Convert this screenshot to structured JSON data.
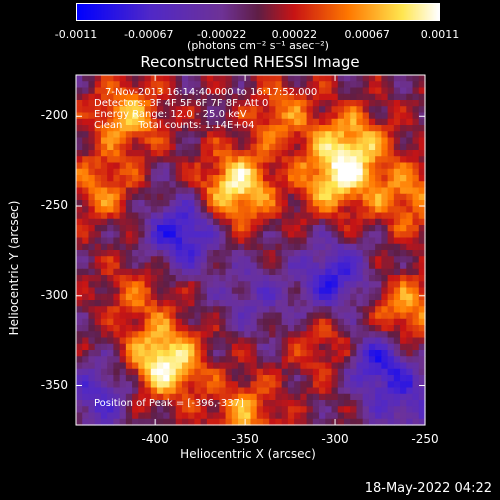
{
  "chart_data": {
    "type": "heatmap",
    "title": "Reconstructed RHESSI Image",
    "xlabel": "Heliocentric X (arcsec)",
    "ylabel": "Heliocentric Y (arcsec)",
    "xlim": [
      -444,
      -250
    ],
    "ylim": [
      -372,
      -177
    ],
    "xticks": [
      "-400",
      "-350",
      "-300",
      "-250"
    ],
    "yticks": [
      "-200",
      "-250",
      "-300",
      "-350"
    ],
    "colorbar": {
      "range": [
        -0.0011,
        0.0011
      ],
      "ticks": [
        "-0.0011",
        "-0.00067",
        "-0.00022",
        "0.00022",
        "0.00067",
        "0.0011"
      ],
      "units": "(photons cm⁻² s⁻¹ asec⁻²)"
    },
    "annotations": {
      "time": "7-Nov-2013 16:14:40.000 to 16:17:52.000",
      "detectors": "Detectors: 3F 4F 5F 6F 7F 8F, Att 0",
      "energy": "Energy Range: 12.0 - 25.0 keV",
      "method": "Clean     Total counts: 1.14E+04",
      "peak": "Position of Peak = [-396,-337]"
    },
    "sources": [
      {
        "x": -355,
        "y": -240,
        "value": 0.001
      },
      {
        "x": -395,
        "y": -337,
        "value": 0.0011
      },
      {
        "x": -300,
        "y": -235,
        "value": 0.0008
      },
      {
        "x": -290,
        "y": -215,
        "value": 0.0007
      },
      {
        "x": -415,
        "y": -200,
        "value": 0.0007
      },
      {
        "x": -260,
        "y": -245,
        "value": 0.0006
      },
      {
        "x": -262,
        "y": -310,
        "value": 0.0007
      },
      {
        "x": -350,
        "y": -365,
        "value": 0.0006
      },
      {
        "x": -430,
        "y": -240,
        "value": 0.0005
      },
      {
        "x": -300,
        "y": -330,
        "value": 0.0005
      },
      {
        "x": -330,
        "y": -200,
        "value": 0.0005
      },
      {
        "x": -410,
        "y": -300,
        "value": 0.0004
      },
      {
        "x": -385,
        "y": -265,
        "value": -0.0009
      },
      {
        "x": -300,
        "y": -290,
        "value": -0.0008
      },
      {
        "x": -278,
        "y": -335,
        "value": -0.0009
      },
      {
        "x": -430,
        "y": -355,
        "value": -0.0006
      },
      {
        "x": -345,
        "y": -300,
        "value": -0.0004
      },
      {
        "x": -260,
        "y": -360,
        "value": -0.0005
      }
    ]
  },
  "timestamp": "18-May-2022 04:22"
}
